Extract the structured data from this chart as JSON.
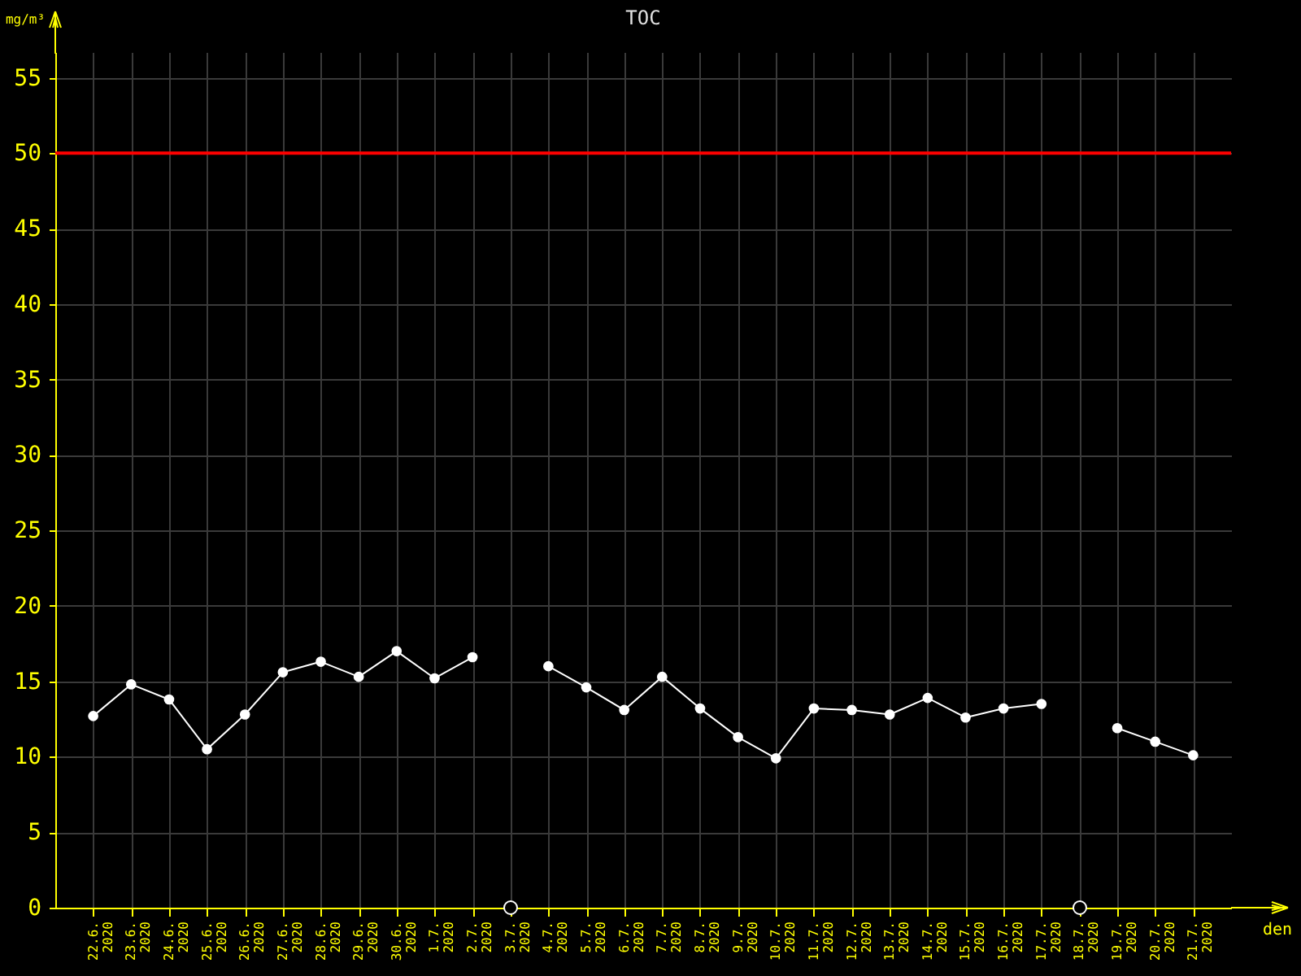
{
  "chart_data": {
    "type": "line",
    "title": "TOC",
    "xlabel": "den",
    "ylabel": "mg/m³",
    "categories": [
      "22.6. 2020",
      "23.6. 2020",
      "24.6. 2020",
      "25.6. 2020",
      "26.6. 2020",
      "27.6. 2020",
      "28.6. 2020",
      "29.6. 2020",
      "30.6. 2020",
      "1.7. 2020",
      "2.7. 2020",
      "3.7. 2020",
      "4.7. 2020",
      "5.7. 2020",
      "6.7. 2020",
      "7.7. 2020",
      "8.7. 2020",
      "9.7. 2020",
      "10.7. 2020",
      "11.7. 2020",
      "12.7. 2020",
      "13.7. 2020",
      "14.7. 2020",
      "15.7. 2020",
      "16.7. 2020",
      "17.7. 2020",
      "18.7. 2020",
      "19.7. 2020",
      "20.7. 2020",
      "21.7. 2020"
    ],
    "series": [
      {
        "color": "#ffffff",
        "values": [
          12.7,
          14.8,
          13.8,
          10.5,
          12.8,
          15.6,
          16.3,
          15.3,
          17.0,
          15.2,
          16.6,
          null,
          16.0,
          14.6,
          13.1,
          15.3,
          13.2,
          11.3,
          9.9,
          13.2,
          13.1,
          12.8,
          13.9,
          12.6,
          13.2,
          13.5,
          null,
          11.9,
          11.0,
          10.1
        ]
      }
    ],
    "ylim": [
      0,
      56.7
    ],
    "yticks": [
      0,
      5,
      10,
      15,
      20,
      25,
      30,
      35,
      40,
      45,
      50,
      55
    ],
    "grid": true,
    "marker": "circle",
    "line_style": "solid",
    "ref_lines": [
      {
        "axis": "y",
        "value": 50,
        "color": "#ff0000"
      }
    ]
  }
}
